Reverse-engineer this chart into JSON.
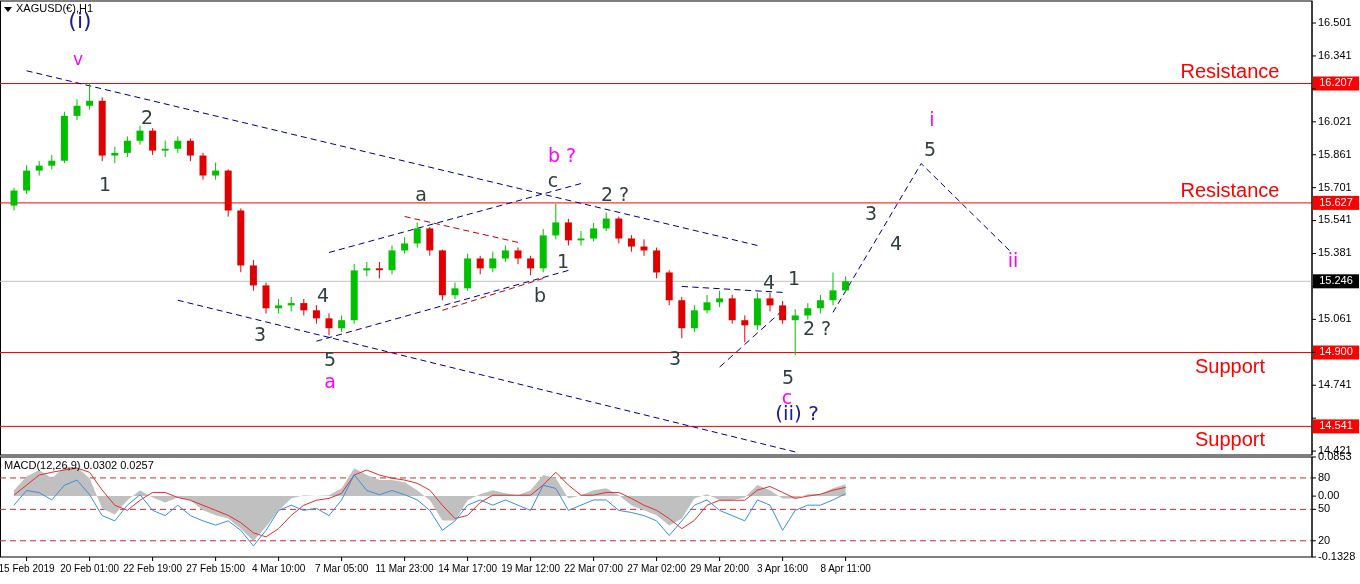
{
  "chart_data": [
    {
      "type": "candlestick",
      "title": "XAGUSD(€),H1",
      "categories": [
        null,
        null,
        null,
        null,
        null,
        null,
        null,
        null,
        null,
        null,
        null,
        null,
        null,
        null,
        null,
        null,
        null,
        null,
        null,
        null,
        null,
        null,
        null,
        null,
        null,
        null,
        null,
        null,
        null,
        null,
        null,
        null,
        null,
        null,
        null,
        null,
        null,
        null,
        null,
        null,
        null,
        null,
        null,
        null,
        null,
        null,
        null,
        null,
        null,
        null,
        null,
        null,
        null,
        null,
        null,
        null,
        null,
        null,
        null,
        null,
        null,
        null,
        null,
        null,
        null,
        null,
        null,
        null,
        null,
        null,
        null,
        null,
        null,
        null,
        null,
        null,
        null,
        null,
        null,
        null,
        null,
        null,
        null,
        null,
        null,
        null,
        null,
        null,
        null,
        null,
        null,
        null,
        null,
        null,
        null,
        null,
        null,
        null,
        null,
        null,
        null,
        null,
        null
      ],
      "ohlc": [
        [
          15.614,
          15.7,
          15.59,
          15.687
        ],
        [
          15.687,
          15.81,
          15.67,
          15.784
        ],
        [
          15.784,
          15.83,
          15.76,
          15.808
        ],
        [
          15.808,
          15.86,
          15.79,
          15.832
        ],
        [
          15.832,
          16.07,
          15.82,
          16.05
        ],
        [
          16.05,
          16.13,
          16.03,
          16.099
        ],
        [
          16.099,
          16.21,
          16.08,
          16.123
        ],
        [
          16.123,
          16.14,
          15.83,
          15.857
        ],
        [
          15.857,
          15.9,
          15.82,
          15.87
        ],
        [
          15.87,
          15.95,
          15.85,
          15.929
        ],
        [
          15.929,
          16.002,
          15.91,
          15.978
        ],
        [
          15.978,
          15.99,
          15.86,
          15.881
        ],
        [
          15.881,
          15.93,
          15.85,
          15.89
        ],
        [
          15.89,
          15.95,
          15.87,
          15.929
        ],
        [
          15.929,
          15.94,
          15.83,
          15.857
        ],
        [
          15.857,
          15.87,
          15.74,
          15.76
        ],
        [
          15.76,
          15.823,
          15.74,
          15.784
        ],
        [
          15.784,
          15.79,
          15.56,
          15.59
        ],
        [
          15.59,
          15.6,
          15.29,
          15.323
        ],
        [
          15.323,
          15.35,
          15.2,
          15.226
        ],
        [
          15.226,
          15.24,
          15.09,
          15.115
        ],
        [
          15.115,
          15.16,
          15.09,
          15.129
        ],
        [
          15.129,
          15.17,
          15.1,
          15.14
        ],
        [
          15.14,
          15.16,
          15.08,
          15.105
        ],
        [
          15.105,
          15.13,
          15.04,
          15.066
        ],
        [
          15.066,
          15.09,
          14.984,
          15.018
        ],
        [
          15.018,
          15.08,
          15.0,
          15.057
        ],
        [
          15.057,
          15.33,
          15.04,
          15.299
        ],
        [
          15.299,
          15.34,
          15.27,
          15.309
        ],
        [
          15.309,
          15.34,
          15.26,
          15.3
        ],
        [
          15.3,
          15.42,
          15.28,
          15.396
        ],
        [
          15.396,
          15.46,
          15.38,
          15.43
        ],
        [
          15.43,
          15.532,
          15.41,
          15.503
        ],
        [
          15.503,
          15.51,
          15.37,
          15.396
        ],
        [
          15.396,
          15.4,
          15.154,
          15.178
        ],
        [
          15.178,
          15.24,
          15.16,
          15.212
        ],
        [
          15.212,
          15.38,
          15.2,
          15.357
        ],
        [
          15.357,
          15.37,
          15.28,
          15.309
        ],
        [
          15.309,
          15.39,
          15.29,
          15.357
        ],
        [
          15.357,
          15.42,
          15.34,
          15.396
        ],
        [
          15.396,
          15.41,
          15.33,
          15.357
        ],
        [
          15.357,
          15.37,
          15.275,
          15.309
        ],
        [
          15.309,
          15.5,
          15.29,
          15.469
        ],
        [
          15.469,
          15.624,
          15.45,
          15.532
        ],
        [
          15.532,
          15.55,
          15.42,
          15.445
        ],
        [
          15.445,
          15.49,
          15.42,
          15.454
        ],
        [
          15.454,
          15.53,
          15.44,
          15.503
        ],
        [
          15.503,
          15.58,
          15.49,
          15.551
        ],
        [
          15.551,
          15.56,
          15.43,
          15.454
        ],
        [
          15.454,
          15.47,
          15.39,
          15.415
        ],
        [
          15.415,
          15.45,
          15.37,
          15.396
        ],
        [
          15.396,
          15.41,
          15.26,
          15.289
        ],
        [
          15.289,
          15.3,
          15.13,
          15.154
        ],
        [
          15.154,
          15.17,
          14.969,
          15.018
        ],
        [
          15.018,
          15.13,
          15.0,
          15.105
        ],
        [
          15.105,
          15.18,
          15.09,
          15.144
        ],
        [
          15.144,
          15.2,
          15.12,
          15.163
        ],
        [
          15.163,
          15.18,
          15.04,
          15.057
        ],
        [
          15.057,
          15.08,
          14.95,
          15.032
        ],
        [
          15.032,
          15.19,
          15.01,
          15.163
        ],
        [
          15.163,
          15.19,
          15.1,
          15.129
        ],
        [
          15.129,
          15.15,
          15.04,
          15.057
        ],
        [
          15.057,
          15.11,
          14.887,
          15.08
        ],
        [
          15.08,
          15.14,
          15.06,
          15.115
        ],
        [
          15.115,
          15.18,
          15.09,
          15.154
        ],
        [
          15.154,
          15.289,
          15.13,
          15.202
        ],
        [
          15.202,
          15.27,
          15.19,
          15.246
        ],
        null,
        null,
        null,
        null,
        null,
        null,
        null,
        null,
        null,
        null,
        null,
        null,
        null,
        null,
        null,
        null,
        null,
        null,
        null,
        null,
        null,
        null,
        null,
        null,
        null,
        null,
        null,
        null,
        null,
        null,
        null,
        null,
        null,
        null,
        null,
        null
      ],
      "colors": [
        "#00c000",
        "#00c000",
        "#00c000",
        "#00c000",
        "#00c000",
        "#00c000",
        "#00c000",
        "#e00000",
        "#00c000",
        "#00c000",
        "#00c000",
        "#e00000",
        "#00c000",
        "#00c000",
        "#e00000",
        "#e00000",
        "#00c000",
        "#e00000",
        "#e00000",
        "#e00000",
        "#e00000",
        "#00c000",
        "#00c000",
        "#e00000",
        "#e00000",
        "#e00000",
        "#00c000",
        "#00c000",
        "#00c000",
        "#e00000",
        "#00c000",
        "#00c000",
        "#00c000",
        "#e00000",
        "#e00000",
        "#00c000",
        "#00c000",
        "#e00000",
        "#00c000",
        "#00c000",
        "#e00000",
        "#e00000",
        "#00c000",
        "#00c000",
        "#e00000",
        "#00c000",
        "#00c000",
        "#00c000",
        "#e00000",
        "#e00000",
        "#e00000",
        "#e00000",
        "#e00000",
        "#e00000",
        "#00c000",
        "#00c000",
        "#00c000",
        "#e00000",
        "#e00000",
        "#00c000",
        "#e00000",
        "#e00000",
        "#00c000",
        "#00c000",
        "#00c000",
        "#00c000",
        "#00c000",
        null,
        null,
        null,
        null,
        null,
        null,
        null,
        null,
        null,
        null,
        null,
        null,
        null,
        null,
        null,
        null,
        null,
        null,
        null,
        null,
        null,
        null,
        null,
        null,
        null,
        null,
        null,
        null,
        null,
        null,
        null,
        null,
        null,
        null,
        null,
        null
      ],
      "ylim": [
        14.402,
        16.608
      ],
      "yticks": [
        16.501,
        16.341,
        16.207,
        {
          "value": 16.181,
          "label": null
        },
        16.021,
        15.861,
        15.701,
        15.627,
        15.541,
        15.381,
        15.246,
        {
          "value": 15.221,
          "label": null
        },
        15.061,
        {
          "value": 14.9,
          "label": "14.900"
        },
        {
          "value": 14.901,
          "label": null
        },
        14.741,
        {
          "value": 14.581,
          "label": null
        },
        14.541,
        14.421
      ],
      "tick_labels": "y",
      "ref_lines": [
        {
          "axis": "y",
          "value": 16.207,
          "label": "Resistance",
          "color": "#ff0000"
        },
        {
          "axis": "y",
          "value": 15.627,
          "label": "Resistance",
          "color": "#ff0000"
        },
        {
          "axis": "y",
          "value": 15.246,
          "label": null,
          "color": "#c0c0c0"
        },
        {
          "axis": "y",
          "value": 14.9,
          "label": "Support",
          "color": "#ff0000"
        },
        {
          "axis": "y",
          "value": 14.541,
          "label": "Support",
          "color": "#ff0000"
        }
      ],
      "series": [
        {
          "type": "line",
          "color": "#000080",
          "line_style": "dashed",
          "values": [
            null,
            16.269,
            null,
            null,
            null,
            null,
            null,
            null,
            null,
            null,
            null,
            null,
            null,
            null,
            null,
            null,
            null,
            null,
            null,
            null,
            null,
            null,
            null,
            null,
            null,
            null,
            null,
            null,
            null,
            null,
            null,
            null,
            null,
            null,
            null,
            null,
            null,
            null,
            null,
            null,
            null,
            null,
            null,
            null,
            null,
            null,
            null,
            null,
            null,
            null,
            null,
            null,
            null,
            null,
            null,
            null,
            null,
            null,
            null,
            15.42,
            null,
            null,
            null,
            null,
            null,
            null,
            null,
            null,
            null,
            null,
            null,
            null,
            null,
            null,
            null,
            null,
            null,
            null,
            null,
            null,
            null,
            null,
            null,
            null,
            null,
            null,
            null,
            null,
            null,
            null,
            null,
            null,
            null,
            null,
            null,
            null,
            null,
            null,
            null,
            null,
            null,
            null,
            null
          ]
        },
        {
          "type": "line",
          "color": "#000080",
          "line_style": "dashed",
          "values": [
            null,
            null,
            null,
            null,
            null,
            null,
            null,
            null,
            null,
            null,
            null,
            null,
            null,
            15.154,
            null,
            null,
            null,
            null,
            null,
            null,
            null,
            null,
            null,
            null,
            null,
            null,
            null,
            null,
            null,
            null,
            null,
            null,
            null,
            null,
            null,
            null,
            null,
            null,
            null,
            null,
            null,
            null,
            null,
            null,
            null,
            null,
            null,
            null,
            null,
            null,
            null,
            null,
            null,
            null,
            null,
            null,
            null,
            null,
            null,
            null,
            null,
            null,
            14.417,
            null,
            null,
            null,
            null,
            null,
            null,
            null,
            null,
            null,
            null,
            null,
            null,
            null,
            null,
            null,
            null,
            null,
            null,
            null,
            null,
            null,
            null,
            null,
            null,
            null,
            null,
            null,
            null,
            null,
            null,
            null,
            null,
            null,
            null,
            null,
            null,
            null,
            null,
            null,
            null
          ]
        },
        {
          "type": "line",
          "color": "#000080",
          "line_style": "dashed",
          "values": [
            null,
            null,
            null,
            null,
            null,
            null,
            null,
            null,
            null,
            null,
            null,
            null,
            null,
            null,
            null,
            null,
            null,
            null,
            null,
            null,
            null,
            null,
            null,
            null,
            null,
            15.386,
            null,
            null,
            null,
            null,
            null,
            null,
            null,
            null,
            null,
            null,
            null,
            null,
            null,
            null,
            null,
            null,
            null,
            null,
            null,
            15.721,
            null,
            null,
            null,
            null,
            null,
            null,
            null,
            null,
            null,
            null,
            null,
            null,
            null,
            null,
            null,
            null,
            null,
            null,
            null,
            null,
            null,
            null,
            null,
            null,
            null,
            null,
            null,
            null,
            null,
            null,
            null,
            null,
            null,
            null,
            null,
            null,
            null,
            null,
            null,
            null,
            null,
            null,
            null,
            null,
            null,
            null,
            null,
            null,
            null,
            null,
            null,
            null,
            null,
            null,
            null,
            null,
            null
          ]
        },
        {
          "type": "line",
          "color": "#000080",
          "line_style": "dashed",
          "values": [
            null,
            null,
            null,
            null,
            null,
            null,
            null,
            null,
            null,
            null,
            null,
            null,
            null,
            null,
            null,
            null,
            null,
            null,
            null,
            null,
            null,
            null,
            null,
            null,
            14.955,
            null,
            null,
            null,
            null,
            null,
            null,
            null,
            null,
            null,
            null,
            null,
            null,
            null,
            null,
            null,
            null,
            null,
            null,
            null,
            15.299,
            null,
            null,
            null,
            null,
            null,
            null,
            null,
            null,
            null,
            null,
            null,
            null,
            null,
            null,
            null,
            null,
            null,
            null,
            null,
            null,
            null,
            null,
            null,
            null,
            null,
            null,
            null,
            null,
            null,
            null,
            null,
            null,
            null,
            null,
            null,
            null,
            null,
            null,
            null,
            null,
            null,
            null,
            null,
            null,
            null,
            null,
            null,
            null,
            null,
            null,
            null,
            null,
            null,
            null,
            null,
            null,
            null,
            null
          ]
        },
        {
          "type": "line",
          "color": "#c00000",
          "line_style": "dashed",
          "values": [
            null,
            null,
            null,
            null,
            null,
            null,
            null,
            null,
            null,
            null,
            null,
            null,
            null,
            null,
            null,
            null,
            null,
            null,
            null,
            null,
            null,
            null,
            null,
            null,
            null,
            null,
            null,
            null,
            null,
            null,
            null,
            15.561,
            null,
            null,
            null,
            null,
            null,
            null,
            null,
            null,
            15.435,
            null,
            null,
            null,
            null,
            null,
            null,
            null,
            null,
            null,
            null,
            null,
            null,
            null,
            null,
            null,
            null,
            null,
            null,
            null,
            null,
            null,
            null,
            null,
            null,
            null,
            null,
            null,
            null,
            null,
            null,
            null,
            null,
            null,
            null,
            null,
            null,
            null,
            null,
            null,
            null,
            null,
            null,
            null,
            null,
            null,
            null,
            null,
            null,
            null,
            null,
            null,
            null,
            null,
            null,
            null,
            null,
            null,
            null,
            null,
            null,
            null,
            null
          ]
        },
        {
          "type": "line",
          "color": "#c00000",
          "line_style": "dashed",
          "values": [
            null,
            null,
            null,
            null,
            null,
            null,
            null,
            null,
            null,
            null,
            null,
            null,
            null,
            null,
            null,
            null,
            null,
            null,
            null,
            null,
            null,
            null,
            null,
            null,
            null,
            null,
            null,
            null,
            null,
            null,
            null,
            null,
            null,
            null,
            15.105,
            null,
            null,
            null,
            null,
            null,
            null,
            null,
            15.26,
            null,
            null,
            null,
            null,
            null,
            null,
            null,
            null,
            null,
            null,
            null,
            null,
            null,
            null,
            null,
            null,
            null,
            null,
            null,
            null,
            null,
            null,
            null,
            null,
            null,
            null,
            null,
            null,
            null,
            null,
            null,
            null,
            null,
            null,
            null,
            null,
            null,
            null,
            null,
            null,
            null,
            null,
            null,
            null,
            null,
            null,
            null,
            null,
            null,
            null,
            null,
            null,
            null,
            null,
            null,
            null,
            null,
            null,
            null,
            null
          ]
        },
        {
          "type": "line",
          "color": "#000080",
          "line_style": "dashed",
          "values": [
            null,
            null,
            null,
            null,
            null,
            null,
            null,
            null,
            null,
            null,
            null,
            null,
            null,
            null,
            null,
            null,
            null,
            null,
            null,
            null,
            null,
            null,
            null,
            null,
            null,
            null,
            null,
            null,
            null,
            null,
            null,
            null,
            null,
            null,
            null,
            null,
            null,
            null,
            null,
            null,
            null,
            null,
            null,
            null,
            null,
            null,
            null,
            null,
            null,
            null,
            null,
            null,
            null,
            15.221,
            null,
            null,
            null,
            null,
            null,
            null,
            null,
            15.192,
            null,
            null,
            null,
            null,
            null,
            null,
            null,
            null,
            null,
            null,
            null,
            null,
            null,
            null,
            null,
            null,
            null,
            null,
            null,
            null,
            null,
            null,
            null,
            null,
            null,
            null,
            null,
            null,
            null,
            null,
            null,
            null,
            null,
            null,
            null,
            null,
            null,
            null,
            null,
            null,
            null
          ]
        },
        {
          "type": "line",
          "color": "#000080",
          "line_style": "dashed",
          "values": [
            null,
            null,
            null,
            null,
            null,
            null,
            null,
            null,
            null,
            null,
            null,
            null,
            null,
            null,
            null,
            null,
            null,
            null,
            null,
            null,
            null,
            null,
            null,
            null,
            null,
            null,
            null,
            null,
            null,
            null,
            null,
            null,
            null,
            null,
            null,
            null,
            null,
            null,
            null,
            null,
            null,
            null,
            null,
            null,
            null,
            null,
            null,
            null,
            null,
            null,
            null,
            null,
            null,
            null,
            null,
            null,
            14.829,
            null,
            null,
            null,
            null,
            15.105,
            null,
            null,
            null,
            null,
            null,
            null,
            null,
            null,
            null,
            null,
            null,
            null,
            null,
            null,
            null,
            null,
            null,
            null,
            null,
            null,
            null,
            null,
            null,
            null,
            null,
            null,
            null,
            null,
            null,
            null,
            null,
            null,
            null,
            null,
            null,
            null,
            null,
            null,
            null,
            null,
            null
          ]
        },
        {
          "type": "line",
          "color": "#000080",
          "line_style": "dashed",
          "values": [
            null,
            null,
            null,
            null,
            null,
            null,
            null,
            null,
            null,
            null,
            null,
            null,
            null,
            null,
            null,
            null,
            null,
            null,
            null,
            null,
            null,
            null,
            null,
            null,
            null,
            null,
            null,
            null,
            null,
            null,
            null,
            null,
            null,
            null,
            null,
            null,
            null,
            null,
            null,
            null,
            null,
            null,
            null,
            null,
            null,
            null,
            null,
            null,
            null,
            null,
            null,
            null,
            null,
            null,
            null,
            null,
            null,
            null,
            null,
            null,
            null,
            null,
            null,
            null,
            null,
            15.095,
            null,
            null,
            null,
            null,
            null,
            null,
            15.818,
            null,
            null,
            null,
            null,
            null,
            null,
            15.396,
            null,
            null,
            null,
            null,
            null,
            null,
            null,
            null,
            null,
            null,
            null,
            null,
            null,
            null,
            null,
            null,
            null,
            null,
            null,
            null,
            null,
            null,
            null
          ]
        }
      ],
      "annotations": [
        "(i)",
        "v",
        "1",
        "2",
        "3",
        "4",
        "5",
        "a",
        "a",
        "b ?",
        "c",
        "1",
        "b",
        "2 ?",
        "3",
        "4",
        "1",
        "2 ?",
        "5",
        "c",
        "(ii) ?",
        "3",
        "4",
        "5",
        "i",
        "ii"
      ]
    },
    {
      "type": "line",
      "title": "MACD(12,26,9) 0.0302 0.0257",
      "categories": [
        null,
        "15 Feb 2019",
        null,
        null,
        null,
        null,
        "20 Feb 01:00",
        null,
        null,
        null,
        null,
        "22 Feb 19:00",
        null,
        null,
        null,
        null,
        "27 Feb 15:00",
        null,
        null,
        null,
        null,
        "4 Mar 10:00",
        null,
        null,
        null,
        null,
        "7 Mar 05:00",
        null,
        null,
        null,
        null,
        "11 Mar 23:00",
        null,
        null,
        null,
        null,
        "14 Mar 17:00",
        null,
        null,
        null,
        null,
        "19 Mar 12:00",
        null,
        null,
        null,
        null,
        "22 Mar 07:00",
        null,
        null,
        null,
        null,
        "27 Mar 02:00",
        null,
        null,
        null,
        null,
        "29 Mar 20:00",
        null,
        null,
        null,
        null,
        "3 Apr 16:00",
        null,
        null,
        null,
        null,
        "8 Apr 11:00",
        null,
        null,
        null,
        null,
        null,
        null,
        null,
        null,
        null,
        null,
        null,
        null,
        null,
        null,
        null,
        null,
        null,
        null,
        null,
        null,
        null,
        null,
        null,
        null,
        null,
        null,
        null,
        null,
        null,
        null,
        null,
        null,
        null,
        null,
        null,
        null
      ],
      "ylim": [
        -0.1328,
        0.0853
      ],
      "yticks": [
        0.0853,
        {
          "value": 0,
          "label": "0.00"
        },
        -0.1328
      ],
      "y2lim": [
        4.5,
        100
      ],
      "y2ticks": [
        80,
        50,
        20
      ],
      "ref_lines": [
        {
          "axis": "y2",
          "value": 80,
          "color": "#c03030",
          "line_style": "dashed"
        },
        {
          "axis": "y2",
          "value": 50,
          "color": "#c03030",
          "line_style": "dashed"
        },
        {
          "axis": "y2",
          "value": 20,
          "color": "#c03030",
          "line_style": "dashed"
        }
      ],
      "series": [
        {
          "type": "area",
          "color": "#c0c0c0",
          "values": [
            0.013,
            0.043,
            0.057,
            0.039,
            0.063,
            0.063,
            0.039,
            -0.027,
            -0.04,
            -0.009,
            0.013,
            -0.003,
            -0.014,
            -0.003,
            -0.009,
            -0.031,
            -0.042,
            -0.049,
            -0.071,
            -0.098,
            -0.067,
            -0.031,
            -0.005,
            0.002,
            0.0,
            0.002,
            0.017,
            0.061,
            0.046,
            0.035,
            0.035,
            0.03,
            0.013,
            -0.009,
            -0.053,
            -0.053,
            -0.009,
            0.004,
            0.013,
            0.006,
            0.002,
            0.013,
            0.046,
            0.039,
            -0.005,
            0.002,
            0.013,
            0.017,
            0.002,
            -0.02,
            -0.031,
            -0.042,
            -0.064,
            -0.049,
            -0.005,
            0.004,
            -0.009,
            -0.009,
            -0.003,
            0.024,
            0.013,
            -0.005,
            -0.005,
            0.004,
            0.004,
            0.017,
            0.026,
            null,
            null,
            null,
            null,
            null,
            null,
            null,
            null,
            null,
            null,
            null,
            null,
            null,
            null,
            null,
            null,
            null,
            null,
            null,
            null,
            null,
            null,
            null,
            null,
            null,
            null,
            null,
            null,
            null,
            null,
            null,
            null,
            null,
            null,
            null,
            null
          ]
        },
        {
          "type": "line",
          "color": "#e03030",
          "values": [
            0.002,
            0.024,
            0.046,
            0.052,
            0.057,
            0.061,
            0.052,
            0.013,
            -0.02,
            -0.031,
            -0.009,
            0.008,
            0.008,
            -0.003,
            -0.009,
            -0.02,
            -0.031,
            -0.042,
            -0.058,
            -0.08,
            -0.089,
            -0.071,
            -0.042,
            -0.02,
            -0.009,
            -0.005,
            0.006,
            0.046,
            0.057,
            0.046,
            0.039,
            0.035,
            0.028,
            0.013,
            -0.02,
            -0.049,
            -0.042,
            -0.014,
            0.002,
            0.002,
            0.002,
            0.002,
            0.024,
            0.052,
            0.024,
            0.002,
            0.002,
            0.008,
            0.008,
            -0.005,
            -0.02,
            -0.031,
            -0.049,
            -0.071,
            -0.053,
            -0.02,
            -0.009,
            -0.009,
            -0.009,
            0.013,
            0.021,
            0.008,
            -0.005,
            0.0,
            0.004,
            0.013,
            0.019,
            null,
            null,
            null,
            null,
            null,
            null,
            null,
            null,
            null,
            null,
            null,
            null,
            null,
            null,
            null,
            null,
            null,
            null,
            null,
            null,
            null,
            null,
            null,
            null,
            null,
            null,
            null,
            null,
            null,
            null,
            null,
            null,
            null,
            null,
            null,
            null
          ]
        },
        {
          "type": "line",
          "color": "#3a8fe0",
          "axis": "y2",
          "values": [
            54,
            68,
            66,
            59,
            73,
            78,
            64,
            44,
            39,
            54,
            64,
            49,
            44,
            54,
            44,
            39,
            35,
            39,
            30,
            15,
            30,
            49,
            54,
            49,
            51,
            44,
            59,
            83,
            68,
            64,
            68,
            64,
            59,
            49,
            30,
            39,
            54,
            59,
            54,
            59,
            54,
            49,
            73,
            70,
            49,
            54,
            59,
            59,
            49,
            47,
            44,
            39,
            25,
            39,
            54,
            59,
            49,
            44,
            39,
            59,
            54,
            30,
            49,
            54,
            54,
            59,
            65,
            null,
            null,
            null,
            null,
            null,
            null,
            null,
            null,
            null,
            null,
            null,
            null,
            null,
            null,
            null,
            null,
            null,
            null,
            null,
            null,
            null,
            null,
            null,
            null,
            null,
            null,
            null,
            null,
            null,
            null,
            null,
            null,
            null,
            null,
            null,
            null
          ]
        }
      ]
    }
  ]
}
